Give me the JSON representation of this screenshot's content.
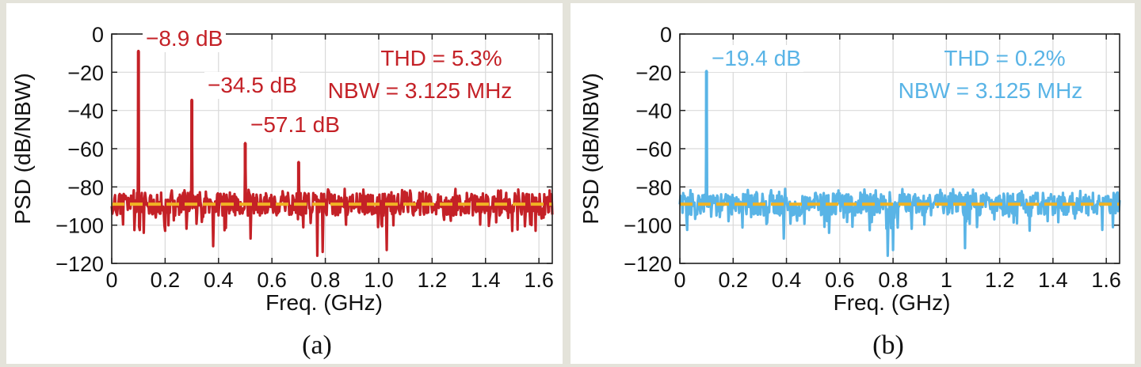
{
  "chart_data": [
    {
      "type": "line",
      "panel_label": "(a)",
      "xlabel": "Freq. (GHz)",
      "ylabel": "PSD (dB/NBW)",
      "xlim": [
        0,
        1.65
      ],
      "ylim": [
        -120,
        0
      ],
      "xticks": [
        0,
        0.2,
        0.4,
        0.6,
        0.8,
        1.0,
        1.2,
        1.4,
        1.6
      ],
      "xtick_labels": [
        "0",
        "0.2",
        "0.4",
        "0.6",
        "0.8",
        "1.0",
        "1.2",
        "1.4",
        "1.6"
      ],
      "yticks": [
        0,
        -20,
        -40,
        -60,
        -80,
        -100,
        -120
      ],
      "ytick_labels": [
        "0",
        "−20",
        "−40",
        "−60",
        "−80",
        "−100",
        "−120"
      ],
      "grid": true,
      "series_color": "#c42127",
      "noise_floor_db": -89,
      "noise_floor_color": "#f0b323",
      "peaks": [
        {
          "x": 0.1,
          "y": -8.9
        },
        {
          "x": 0.3,
          "y": -34.5
        },
        {
          "x": 0.5,
          "y": -57.1
        },
        {
          "x": 0.7,
          "y": -67
        }
      ],
      "dips": [
        {
          "x": 0.38,
          "y": -111
        },
        {
          "x": 0.77,
          "y": -116
        },
        {
          "x": 0.79,
          "y": -114
        },
        {
          "x": 1.03,
          "y": -113
        },
        {
          "x": 0.52,
          "y": -107
        },
        {
          "x": 0.12,
          "y": -104
        }
      ],
      "annotations": [
        {
          "text": "−8.9 dB",
          "x": 0.1,
          "y": -8.9
        },
        {
          "text": "−34.5 dB",
          "x": 0.3,
          "y": -34.5
        },
        {
          "text": "−57.1 dB",
          "x": 0.5,
          "y": -57.1
        }
      ],
      "info": [
        "THD = 5.3%",
        "NBW = 3.125 MHz"
      ]
    },
    {
      "type": "line",
      "panel_label": "(b)",
      "xlabel": "Freq. (GHz)",
      "ylabel": "PSD (dB/NBW)",
      "xlim": [
        0,
        1.65
      ],
      "ylim": [
        -120,
        0
      ],
      "xticks": [
        0,
        0.2,
        0.4,
        0.6,
        0.8,
        1.0,
        1.2,
        1.4,
        1.6
      ],
      "xtick_labels": [
        "0",
        "0.2",
        "0.4",
        "0.6",
        "0.8",
        "1",
        "1.2",
        "1.4",
        "1.6"
      ],
      "yticks": [
        0,
        -20,
        -40,
        -60,
        -80,
        -100,
        -120
      ],
      "ytick_labels": [
        "0",
        "−20",
        "−40",
        "−60",
        "−80",
        "−100",
        "−120"
      ],
      "grid": true,
      "series_color": "#59b4e6",
      "noise_floor_db": -89,
      "noise_floor_color": "#f0b323",
      "peaks": [
        {
          "x": 0.1,
          "y": -19.4
        }
      ],
      "dips": [
        {
          "x": 0.78,
          "y": -116
        },
        {
          "x": 0.8,
          "y": -113
        },
        {
          "x": 1.07,
          "y": -112
        },
        {
          "x": 0.39,
          "y": -107
        },
        {
          "x": 0.56,
          "y": -104
        }
      ],
      "annotations": [
        {
          "text": "−19.4 dB",
          "x": 0.1,
          "y": -19.4
        }
      ],
      "info": [
        "THD = 0.2%",
        "NBW = 3.125 MHz"
      ]
    }
  ]
}
